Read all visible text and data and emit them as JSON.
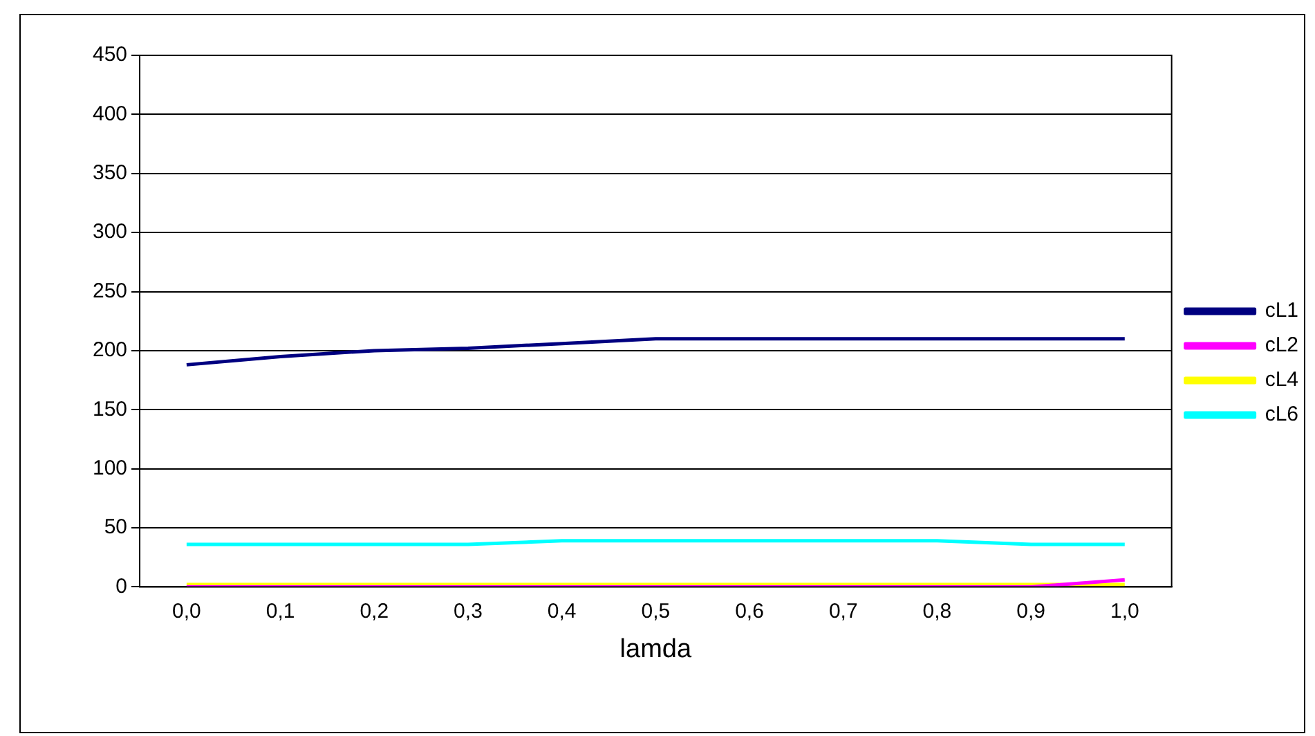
{
  "chart_data": {
    "type": "line",
    "xlabel": "lamda",
    "categories": [
      "0,0",
      "0,1",
      "0,2",
      "0,3",
      "0,4",
      "0,5",
      "0,6",
      "0,7",
      "0,8",
      "0,9",
      "1,0"
    ],
    "series": [
      {
        "name": "cL1",
        "color": "#000080",
        "values": [
          188,
          195,
          200,
          202,
          206,
          210,
          210,
          210,
          210,
          210,
          210
        ]
      },
      {
        "name": "cL2",
        "color": "#ff00ff",
        "values": [
          0,
          0,
          0,
          0,
          0,
          0,
          0,
          0,
          0,
          0,
          6
        ]
      },
      {
        "name": "cL4",
        "color": "#ffff00",
        "values": [
          2,
          2,
          2,
          2,
          2,
          2,
          2,
          2,
          2,
          2,
          2
        ]
      },
      {
        "name": "cL6",
        "color": "#00ffff",
        "values": [
          36,
          36,
          36,
          36,
          39,
          39,
          39,
          39,
          39,
          36,
          36
        ]
      }
    ],
    "ylim": [
      0,
      450
    ],
    "yticks": [
      0,
      50,
      100,
      150,
      200,
      250,
      300,
      350,
      400,
      450
    ],
    "grid": "y",
    "legend": "right",
    "marker": "none",
    "line_style": "solid"
  }
}
